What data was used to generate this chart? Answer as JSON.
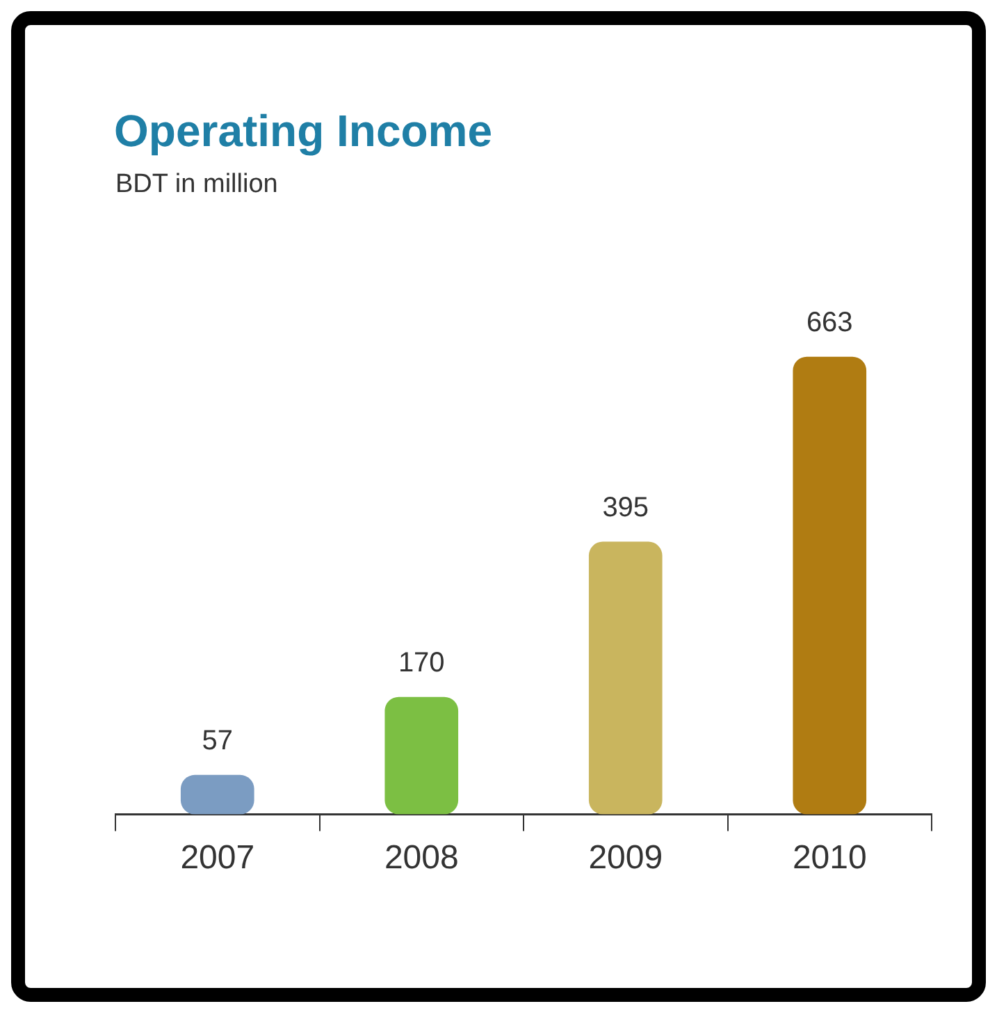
{
  "chart_data": {
    "type": "bar",
    "title": "Operating Income",
    "subtitle": "BDT in million",
    "categories": [
      "2007",
      "2008",
      "2009",
      "2010"
    ],
    "values": [
      57,
      170,
      395,
      663
    ],
    "colors": [
      "#7b9cc2",
      "#7cbf43",
      "#c9b55e",
      "#b07c12"
    ],
    "data_labels": true,
    "grid": false,
    "legend": false,
    "tick_labels": "x"
  }
}
